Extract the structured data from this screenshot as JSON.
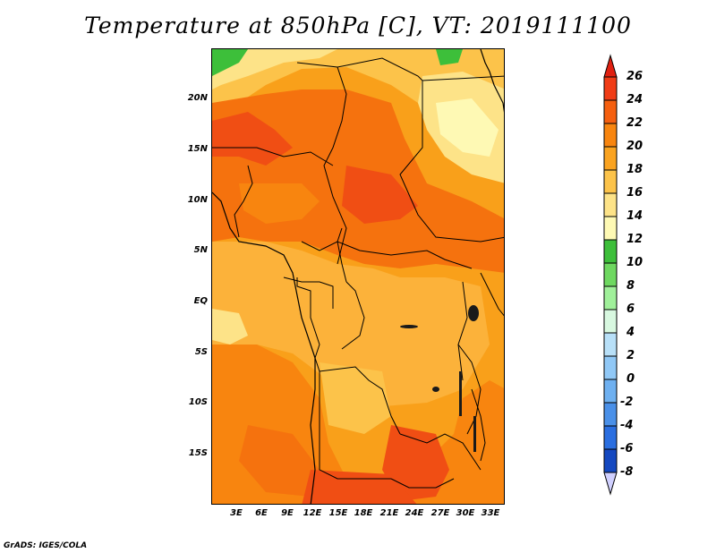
{
  "title": "Temperature at 850hPa [C], VT: 2019111100",
  "credit": "GrADS: IGES/COLA",
  "map": {
    "lat_labels": [
      "20N",
      "15N",
      "10N",
      "5N",
      "EQ",
      "5S",
      "10S",
      "15S"
    ],
    "lon_labels": [
      "3E",
      "6E",
      "9E",
      "12E",
      "15E",
      "18E",
      "21E",
      "24E",
      "27E",
      "30E",
      "33E"
    ],
    "lat_values": [
      20,
      15,
      10,
      5,
      0,
      -5,
      -10,
      -15
    ],
    "lon_values": [
      3,
      6,
      9,
      12,
      15,
      18,
      21,
      24,
      27,
      30,
      33
    ],
    "lon_range": [
      0,
      34.5
    ],
    "lat_range": [
      -19.5,
      24.5
    ]
  },
  "colorbar": {
    "labels": [
      "26",
      "24",
      "22",
      "20",
      "18",
      "16",
      "14",
      "12",
      "10",
      "8",
      "6",
      "4",
      "2",
      "0",
      "-2",
      "-4",
      "-6",
      "-8"
    ],
    "colors": [
      "#f03c16",
      "#f55f0f",
      "#f8850f",
      "#faa320",
      "#fcc34a",
      "#fde388",
      "#fef9b4",
      "#3dbf3a",
      "#6ed860",
      "#a0f09a",
      "#d8f8e0",
      "#b8e0f8",
      "#90c8f6",
      "#6eb0f0",
      "#4a90e8",
      "#2a6ee0",
      "#1448c0",
      "#082a90"
    ],
    "top_arrow_color": "#e02010",
    "bottom_arrow_color": "#d0d0ff"
  }
}
